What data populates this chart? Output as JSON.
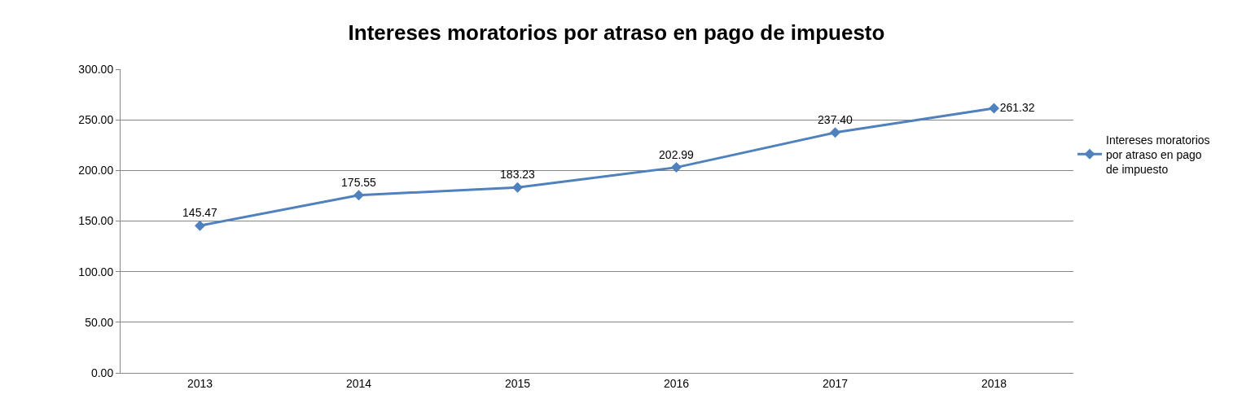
{
  "chart_data": {
    "type": "line",
    "title": "Intereses moratorios por atraso en pago de impuesto",
    "categories": [
      "2013",
      "2014",
      "2015",
      "2016",
      "2017",
      "2018"
    ],
    "series": [
      {
        "name": "Intereses moratorios por atraso en pago de impuesto",
        "color": "#4f81bd",
        "values": [
          145.47,
          175.55,
          183.23,
          202.99,
          237.4,
          261.32
        ],
        "value_labels": [
          "145.47",
          "175.55",
          "183.23",
          "202.99",
          "237.40",
          "261.32"
        ]
      }
    ],
    "ylim": [
      0,
      300
    ],
    "yticks": [
      {
        "value": 0,
        "label": "0.00"
      },
      {
        "value": 50,
        "label": "50.00"
      },
      {
        "value": 100,
        "label": "100.00"
      },
      {
        "value": 150,
        "label": "150.00"
      },
      {
        "value": 200,
        "label": "200.00"
      },
      {
        "value": 250,
        "label": "250.00"
      },
      {
        "value": 300,
        "label": "300.00"
      }
    ],
    "grid": "y",
    "legend": "right",
    "marker": "diamond",
    "line_style": "solid"
  }
}
